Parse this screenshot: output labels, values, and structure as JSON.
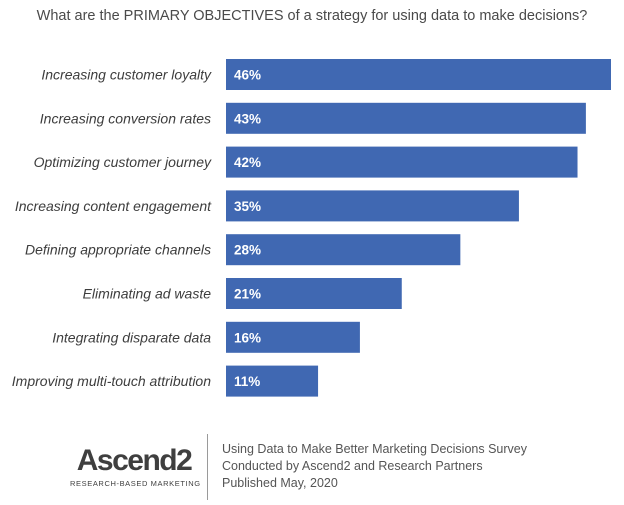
{
  "chart_data": {
    "type": "bar",
    "orientation": "horizontal",
    "title": "What are the PRIMARY OBJECTIVES of a strategy for using data to make decisions?",
    "categories": [
      "Increasing customer loyalty",
      "Increasing conversion rates",
      "Optimizing customer journey",
      "Increasing content engagement",
      "Defining appropriate channels",
      "Eliminating ad waste",
      "Integrating disparate data",
      "Improving multi-touch attribution"
    ],
    "values": [
      46,
      43,
      42,
      35,
      28,
      21,
      16,
      11
    ],
    "data_labels": [
      "46%",
      "43%",
      "42%",
      "35%",
      "28%",
      "21%",
      "16%",
      "11%"
    ],
    "xlim": [
      0,
      46
    ],
    "grid": false,
    "legend": "none",
    "bar_color": "#4068b2"
  },
  "footer": {
    "logo_name": "Ascend2",
    "logo_tagline": "RESEARCH-BASED MARKETING",
    "info_lines": [
      "Using Data to Make Better Marketing Decisions Survey",
      "Conducted  by Ascend2 and Research Partners",
      "Published May, 2020"
    ]
  }
}
